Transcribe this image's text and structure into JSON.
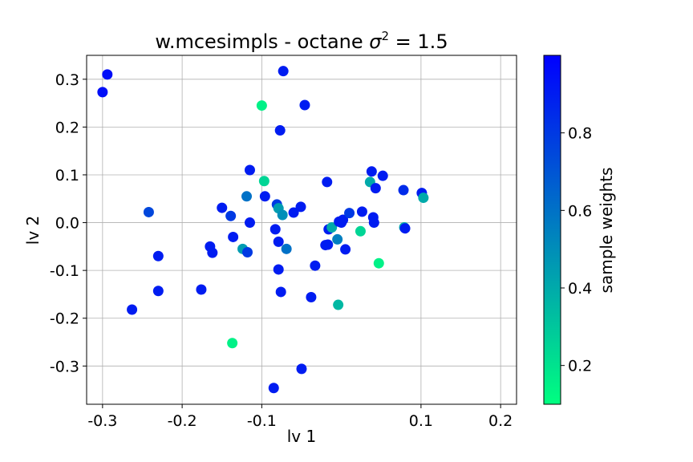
{
  "chart_data": {
    "type": "scatter",
    "title": "w.mcesimpls - octane σ² = 1.5",
    "title_main": "w.mcesimpls - octane ",
    "title_sigma": "σ",
    "title_sup": "2",
    "title_tail": " = 1.5",
    "xlabel": "lv 1",
    "ylabel": "lv 2",
    "xlim": [
      -0.32,
      0.22
    ],
    "ylim": [
      -0.38,
      0.35
    ],
    "xticks": [
      -0.3,
      -0.2,
      -0.1,
      0.1,
      0.2
    ],
    "xtick_labels": [
      "-0.3",
      "-0.2",
      "-0.1",
      "0.1",
      "0.2"
    ],
    "yticks": [
      0.3,
      0.2,
      0.1,
      0.0,
      -0.1,
      -0.2,
      -0.3
    ],
    "ytick_labels": [
      "0.3",
      "0.2",
      "0.1",
      "0.0",
      "-0.1",
      "-0.2",
      "-0.3"
    ],
    "grid": true,
    "colormap": "winter",
    "colormap_colors": [
      "#00ff80",
      "#0000ff"
    ],
    "colorbar": {
      "label": "sample weights",
      "range": [
        0.1,
        1.0
      ],
      "ticks": [
        0.8,
        0.6,
        0.4,
        0.2
      ],
      "tick_labels": [
        "0.8",
        "0.6",
        "0.4",
        "0.2"
      ]
    },
    "points": [
      {
        "x": -0.3,
        "y": 0.273,
        "w": 0.95
      },
      {
        "x": -0.294,
        "y": 0.31,
        "w": 0.95
      },
      {
        "x": -0.242,
        "y": 0.022,
        "w": 0.75
      },
      {
        "x": -0.23,
        "y": -0.07,
        "w": 0.9
      },
      {
        "x": -0.23,
        "y": -0.143,
        "w": 0.9
      },
      {
        "x": -0.263,
        "y": -0.182,
        "w": 0.9
      },
      {
        "x": -0.176,
        "y": -0.14,
        "w": 0.9
      },
      {
        "x": -0.165,
        "y": -0.05,
        "w": 0.9
      },
      {
        "x": -0.162,
        "y": -0.063,
        "w": 0.9
      },
      {
        "x": -0.15,
        "y": 0.031,
        "w": 0.9
      },
      {
        "x": -0.139,
        "y": 0.014,
        "w": 0.8
      },
      {
        "x": -0.136,
        "y": -0.03,
        "w": 0.9
      },
      {
        "x": -0.124,
        "y": -0.055,
        "w": 0.45
      },
      {
        "x": -0.119,
        "y": 0.055,
        "w": 0.6
      },
      {
        "x": -0.118,
        "y": -0.062,
        "w": 0.8
      },
      {
        "x": -0.115,
        "y": 0.11,
        "w": 0.9
      },
      {
        "x": -0.115,
        "y": 0.0,
        "w": 0.9
      },
      {
        "x": -0.137,
        "y": -0.252,
        "w": 0.15
      },
      {
        "x": -0.1,
        "y": 0.245,
        "w": 0.15
      },
      {
        "x": -0.097,
        "y": 0.087,
        "w": 0.25
      },
      {
        "x": -0.096,
        "y": 0.055,
        "w": 0.9
      },
      {
        "x": -0.083,
        "y": -0.014,
        "w": 0.9
      },
      {
        "x": -0.081,
        "y": 0.038,
        "w": 0.8
      },
      {
        "x": -0.079,
        "y": 0.03,
        "w": 0.45
      },
      {
        "x": -0.079,
        "y": -0.04,
        "w": 0.9
      },
      {
        "x": -0.079,
        "y": -0.098,
        "w": 0.9
      },
      {
        "x": -0.077,
        "y": 0.193,
        "w": 0.9
      },
      {
        "x": -0.076,
        "y": -0.145,
        "w": 0.9
      },
      {
        "x": -0.074,
        "y": 0.016,
        "w": 0.5
      },
      {
        "x": -0.073,
        "y": 0.317,
        "w": 0.9
      },
      {
        "x": -0.069,
        "y": -0.055,
        "w": 0.6
      },
      {
        "x": -0.06,
        "y": 0.021,
        "w": 0.9
      },
      {
        "x": -0.051,
        "y": 0.033,
        "w": 0.9
      },
      {
        "x": -0.05,
        "y": -0.306,
        "w": 0.9
      },
      {
        "x": -0.046,
        "y": 0.246,
        "w": 0.9
      },
      {
        "x": -0.038,
        "y": -0.156,
        "w": 0.9
      },
      {
        "x": -0.033,
        "y": -0.09,
        "w": 0.9
      },
      {
        "x": -0.02,
        "y": -0.047,
        "w": 0.9
      },
      {
        "x": -0.018,
        "y": 0.085,
        "w": 0.9
      },
      {
        "x": -0.017,
        "y": -0.046,
        "w": 0.9
      },
      {
        "x": -0.016,
        "y": -0.014,
        "w": 0.9
      },
      {
        "x": -0.012,
        "y": -0.01,
        "w": 0.4
      },
      {
        "x": -0.005,
        "y": -0.035,
        "w": 0.55
      },
      {
        "x": -0.004,
        "y": -0.172,
        "w": 0.35
      },
      {
        "x": -0.003,
        "y": 0.002,
        "w": 0.9
      },
      {
        "x": 0.0,
        "y": 0.0,
        "w": 0.9
      },
      {
        "x": 0.002,
        "y": 0.006,
        "w": 0.9
      },
      {
        "x": 0.005,
        "y": -0.056,
        "w": 0.9
      },
      {
        "x": 0.01,
        "y": 0.02,
        "w": 0.8
      },
      {
        "x": 0.024,
        "y": -0.018,
        "w": 0.25
      },
      {
        "x": 0.026,
        "y": 0.023,
        "w": 0.9
      },
      {
        "x": 0.036,
        "y": 0.085,
        "w": 0.4
      },
      {
        "x": 0.038,
        "y": 0.107,
        "w": 0.9
      },
      {
        "x": 0.04,
        "y": 0.011,
        "w": 0.9
      },
      {
        "x": 0.041,
        "y": 0.0,
        "w": 0.9
      },
      {
        "x": 0.043,
        "y": 0.072,
        "w": 0.9
      },
      {
        "x": 0.047,
        "y": -0.085,
        "w": 0.15
      },
      {
        "x": 0.052,
        "y": 0.098,
        "w": 0.9
      },
      {
        "x": 0.078,
        "y": 0.068,
        "w": 0.85
      },
      {
        "x": 0.079,
        "y": -0.01,
        "w": 0.4
      },
      {
        "x": 0.08,
        "y": -0.012,
        "w": 0.9
      },
      {
        "x": 0.101,
        "y": 0.062,
        "w": 0.9
      },
      {
        "x": 0.103,
        "y": 0.052,
        "w": 0.4
      },
      {
        "x": -0.085,
        "y": -0.346,
        "w": 0.9
      }
    ]
  }
}
